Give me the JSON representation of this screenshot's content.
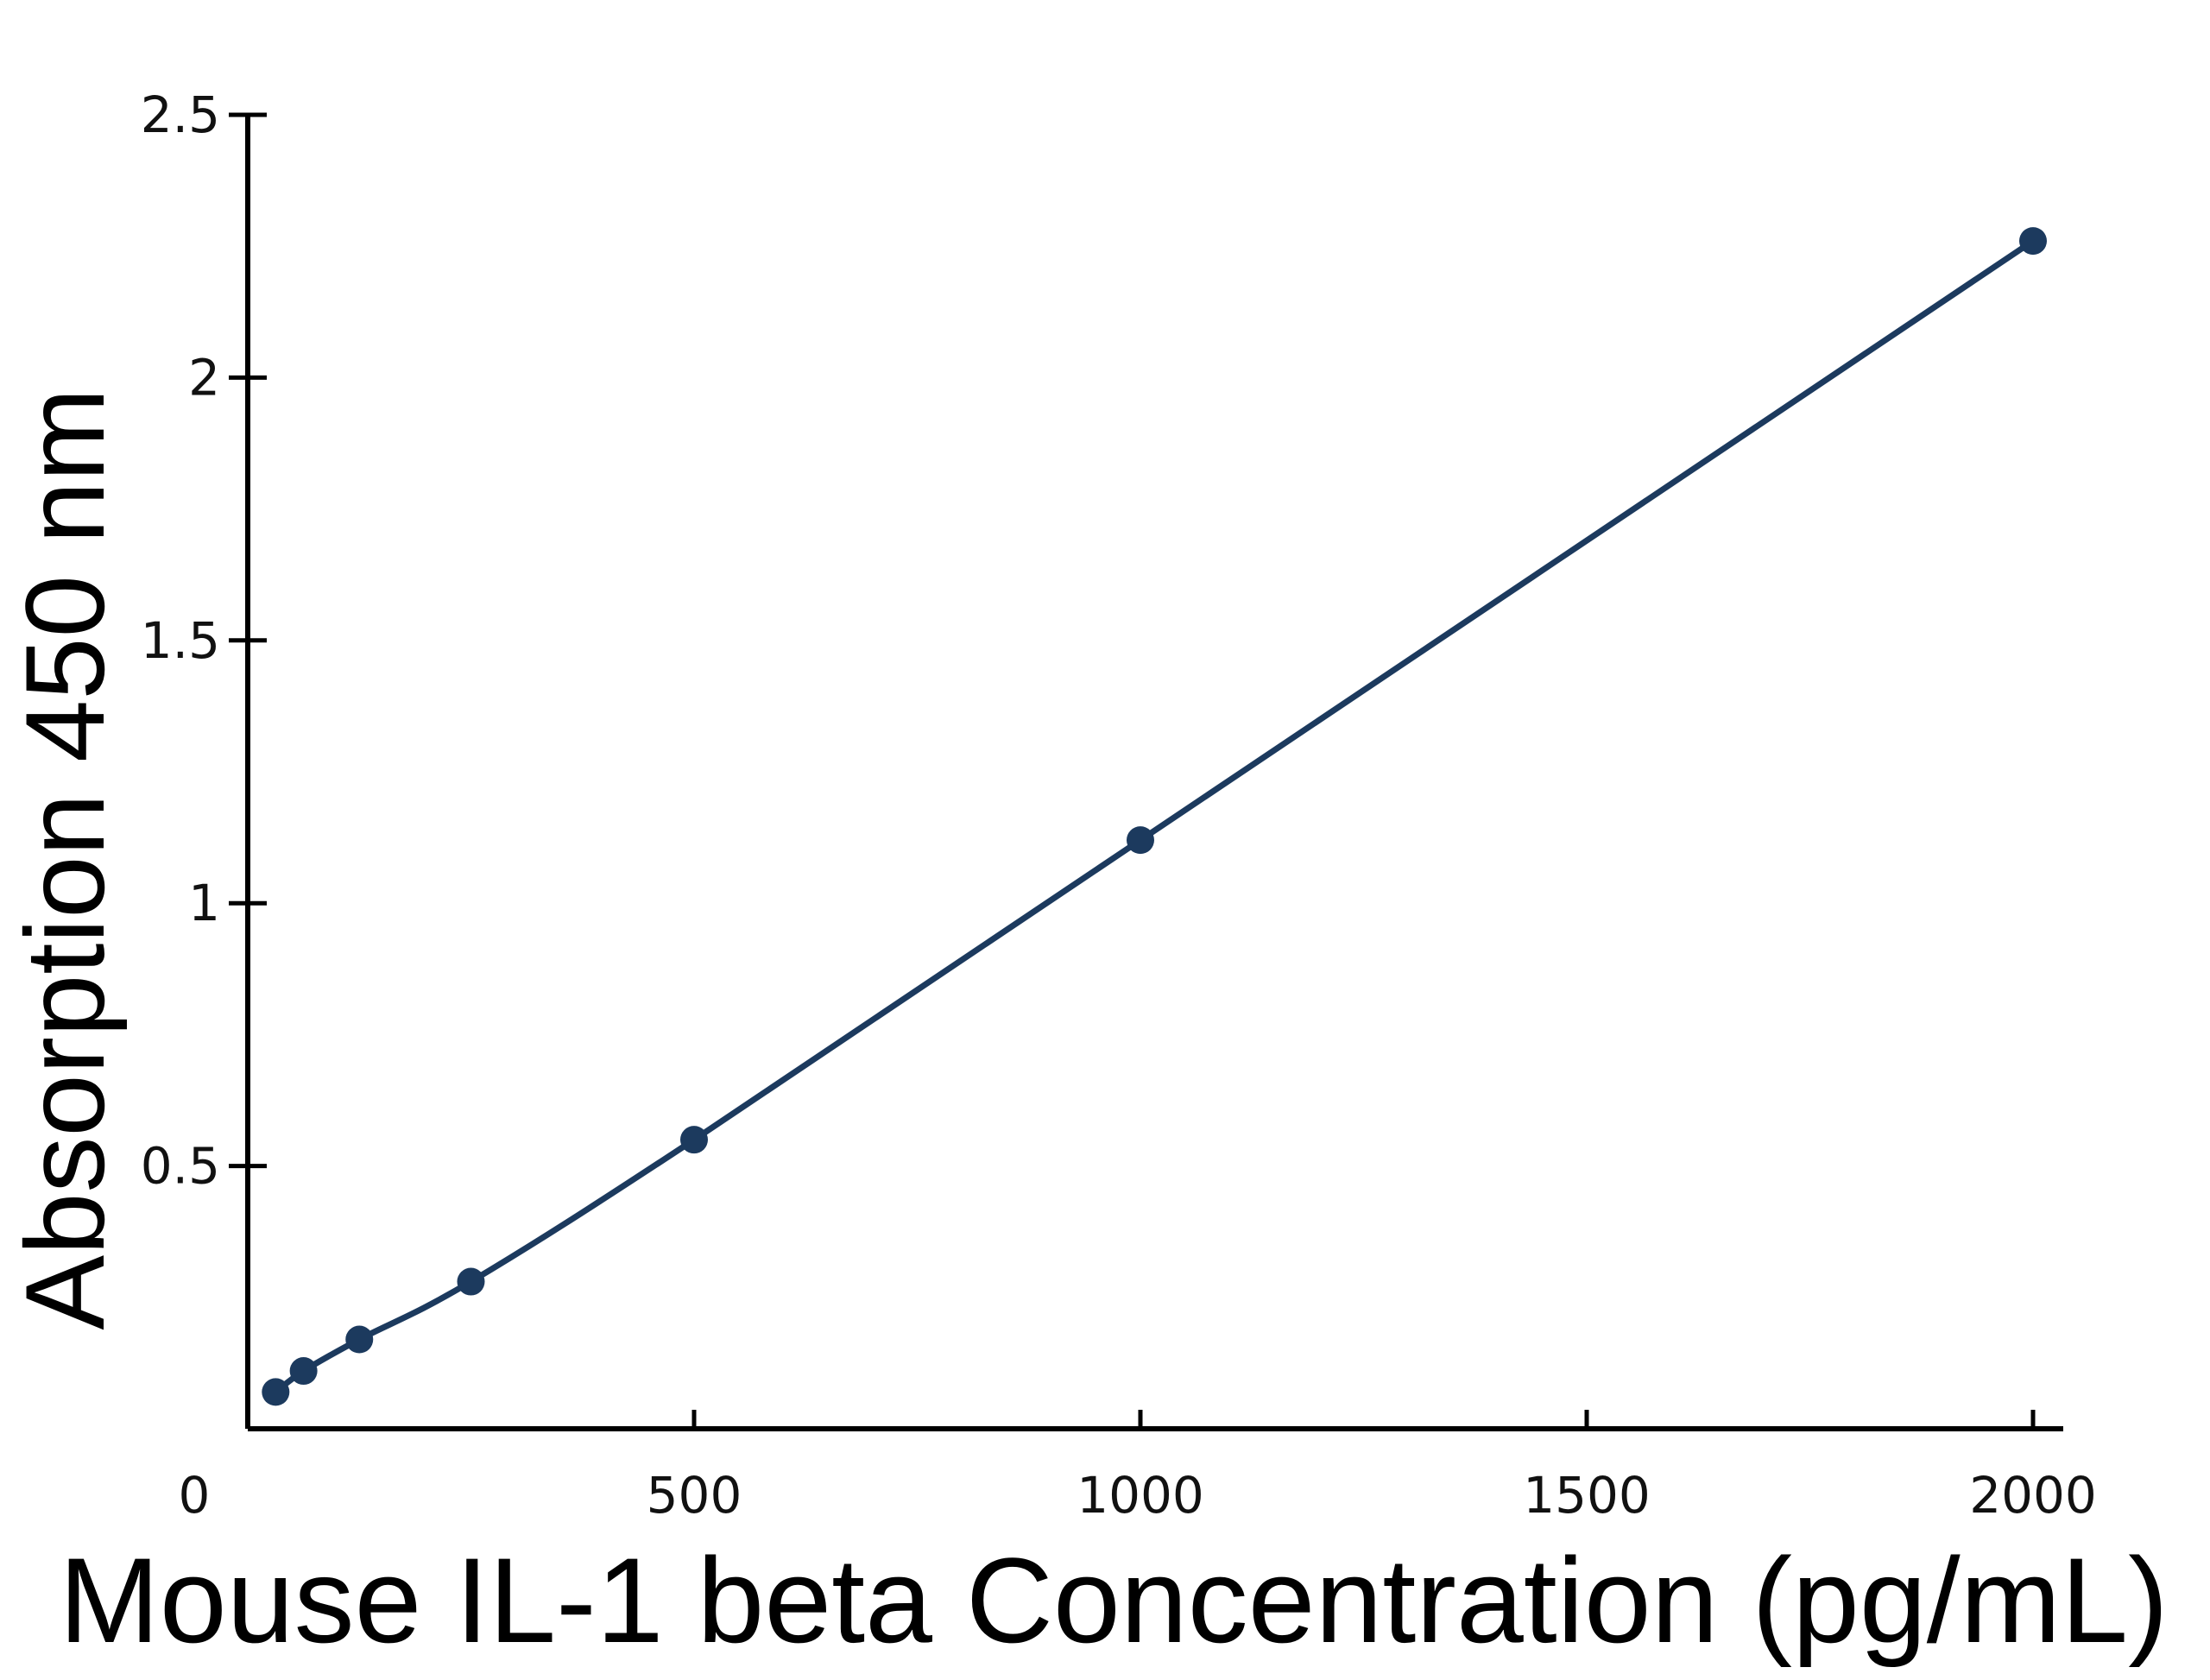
{
  "chart_data": {
    "type": "line",
    "title": "",
    "xlabel": "Mouse IL-1 beta Concentration (pg/mL)",
    "ylabel": "Absorption 450 nm",
    "xlim": [
      0,
      2050
    ],
    "ylim": [
      0,
      2.5
    ],
    "x_ticks": [
      0,
      500,
      1000,
      1500,
      2000
    ],
    "x_tick_labels": [
      "0",
      "500",
      "1000",
      "1500",
      "2000"
    ],
    "y_ticks": [
      0.5,
      1,
      1.5,
      2,
      2.5
    ],
    "y_tick_labels": [
      "0.5",
      "1",
      "1.5",
      "2",
      "2.5"
    ],
    "grid": false,
    "series": [
      {
        "color": "#1c3a5e",
        "marker": "circle",
        "x": [
          31.25,
          62.5,
          125,
          250,
          500,
          1000,
          2000
        ],
        "y": [
          0.07,
          0.11,
          0.17,
          0.28,
          0.55,
          1.12,
          2.26
        ]
      }
    ]
  }
}
